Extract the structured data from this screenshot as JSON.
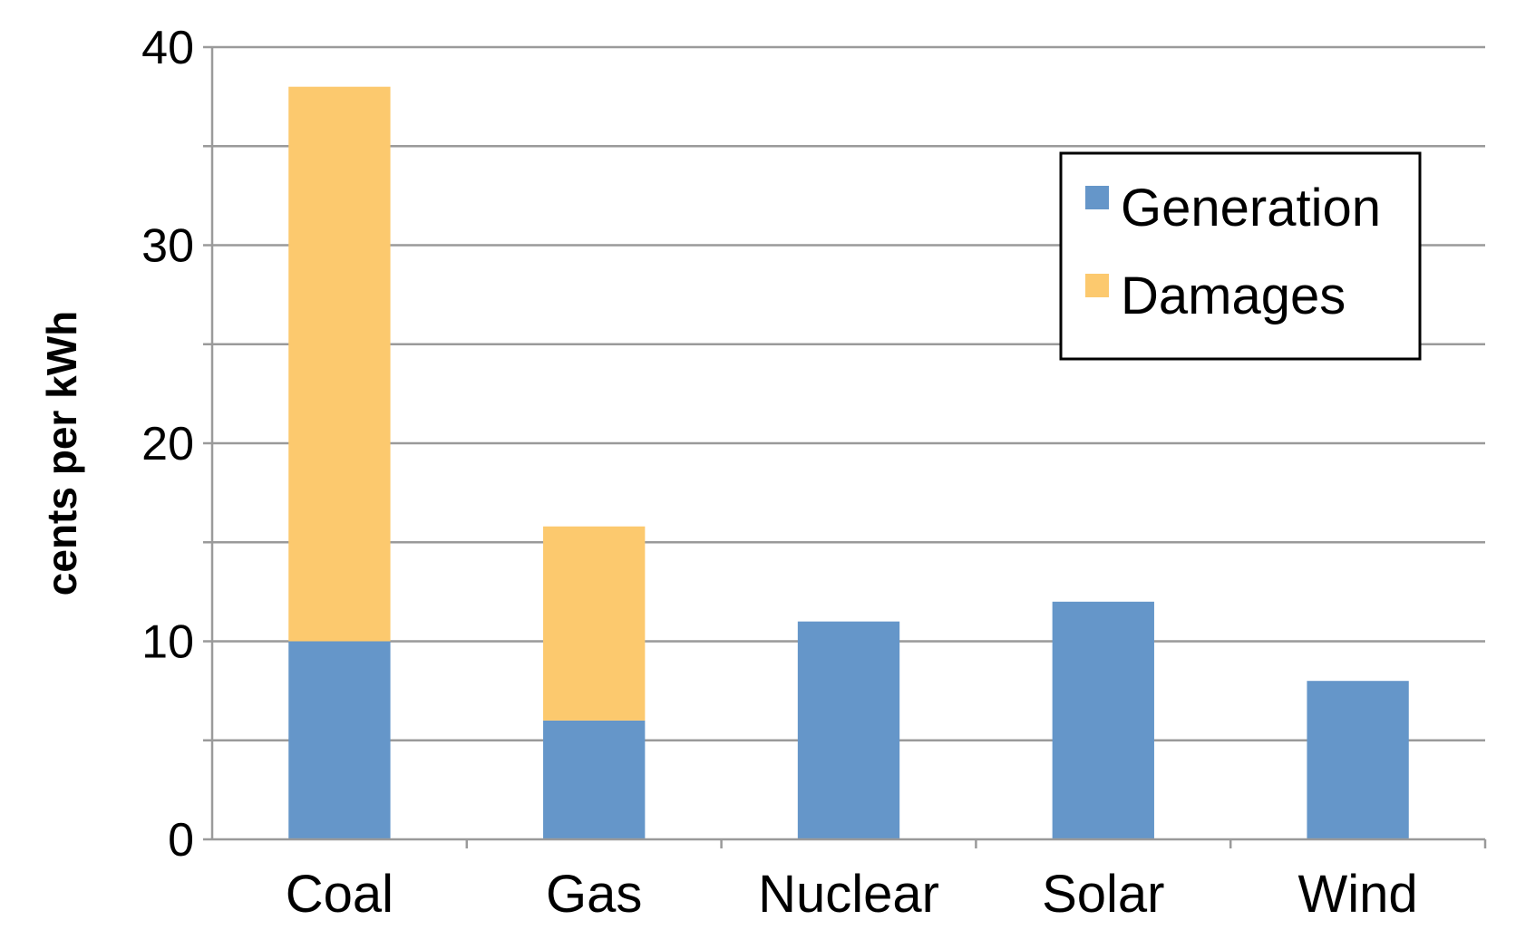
{
  "chart_data": {
    "type": "bar",
    "stacked": true,
    "categories": [
      "Coal",
      "Gas",
      "Nuclear",
      "Solar",
      "Wind"
    ],
    "series": [
      {
        "name": "Generation",
        "values": [
          10,
          6,
          11,
          12,
          8
        ],
        "color": "#6596c9"
      },
      {
        "name": "Damages",
        "values": [
          28,
          9.8,
          0,
          0,
          0
        ],
        "color": "#fcc96e"
      }
    ],
    "title": "",
    "xlabel": "",
    "ylabel": "cents per kWh",
    "ylim": [
      0,
      40
    ],
    "yticks": [
      0,
      10,
      20,
      30,
      40
    ],
    "grid": true,
    "legend_position": "top-right"
  }
}
